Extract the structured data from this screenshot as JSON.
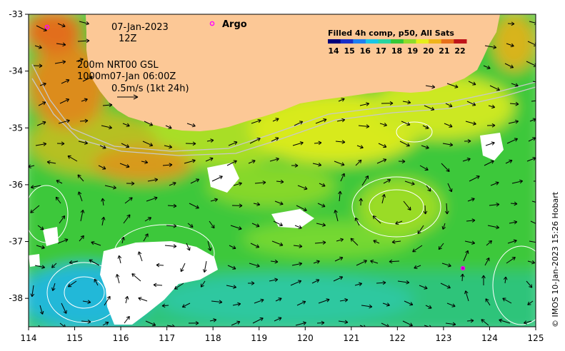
{
  "chart_data": {
    "type": "heatmap",
    "title": "Filled 4h comp, p50, All Sats",
    "x_ticks": [
      114,
      115,
      116,
      117,
      118,
      119,
      120,
      121,
      122,
      123,
      124,
      125
    ],
    "y_ticks": [
      -33,
      -34,
      -35,
      -36,
      -37,
      -38
    ],
    "xlim": [
      114,
      125
    ],
    "ylim": [
      -38.5,
      -33
    ],
    "colorbar": {
      "ticks": [
        14,
        15,
        16,
        17,
        18,
        19,
        20,
        21,
        22
      ],
      "colors": [
        "#00007a",
        "#1a2fc8",
        "#1f7ff0",
        "#1ac6e6",
        "#2ad4a0",
        "#36c838",
        "#8fdc2a",
        "#e6ee1a",
        "#f0b41a",
        "#e8701a",
        "#c0141a"
      ]
    },
    "land_color": "#fcc896",
    "annotations": {
      "date": "07-Jan-2023",
      "hour": "12Z",
      "line1": "200m  NRT00 GSL",
      "line2": "1000m07-Jan 06:00Z",
      "vector_scale": "0.5m/s (1kt 24h)",
      "argo_label": "Argo"
    },
    "credit": "© IMOS 10-Jan-2023 15:26 Hobart"
  }
}
